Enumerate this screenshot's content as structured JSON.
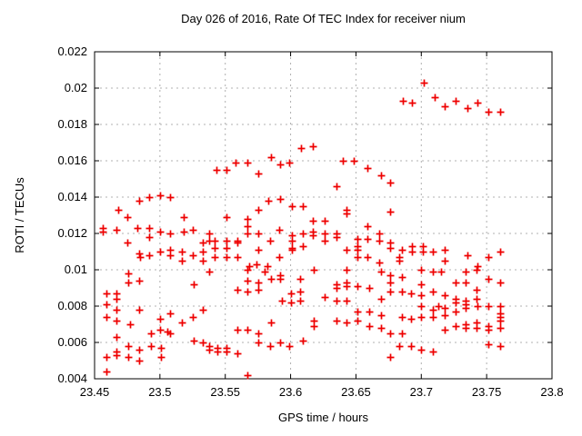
{
  "window": {
    "background": "#ffffff"
  },
  "chart_data": {
    "type": "scatter",
    "title": "Day 026 of 2016, Rate Of TEC Index for receiver nium",
    "xlabel": "GPS time / hours",
    "ylabel": "ROTI / TECUs",
    "xlim": [
      23.45,
      23.8
    ],
    "ylim": [
      0.004,
      0.022
    ],
    "grid": true,
    "legend": "none",
    "marker": "plus",
    "marker_color": "#ee0000",
    "grid_color": "#b0b0b0",
    "border_color": "#000000",
    "xticks": [
      {
        "value": 23.45,
        "label": "23.45"
      },
      {
        "value": 23.5,
        "label": "23.5"
      },
      {
        "value": 23.55,
        "label": "23.55"
      },
      {
        "value": 23.6,
        "label": "23.6"
      },
      {
        "value": 23.65,
        "label": "23.65"
      },
      {
        "value": 23.7,
        "label": "23.7"
      },
      {
        "value": 23.75,
        "label": "23.75"
      },
      {
        "value": 23.8,
        "label": "23.8"
      }
    ],
    "yticks": [
      {
        "value": 0.004,
        "label": "0.004"
      },
      {
        "value": 0.006,
        "label": "0.006"
      },
      {
        "value": 0.008,
        "label": "0.008"
      },
      {
        "value": 0.01,
        "label": "0.01"
      },
      {
        "value": 0.012,
        "label": "0.012"
      },
      {
        "value": 0.014,
        "label": "0.014"
      },
      {
        "value": 0.016,
        "label": "0.016"
      },
      {
        "value": 0.018,
        "label": "0.018"
      },
      {
        "value": 0.02,
        "label": "0.02"
      },
      {
        "value": 0.022,
        "label": "0.022"
      }
    ],
    "points": [
      [
        23.686,
        0.0193
      ],
      [
        23.693,
        0.0192
      ],
      [
        23.702,
        0.0203
      ],
      [
        23.71,
        0.0195
      ],
      [
        23.718,
        0.019
      ],
      [
        23.726,
        0.0193
      ],
      [
        23.735,
        0.0189
      ],
      [
        23.743,
        0.0192
      ],
      [
        23.751,
        0.0187
      ],
      [
        23.76,
        0.0187
      ],
      [
        23.585,
        0.0162
      ],
      [
        23.608,
        0.0167
      ],
      [
        23.617,
        0.0168
      ],
      [
        23.558,
        0.0159
      ],
      [
        23.567,
        0.0159
      ],
      [
        23.592,
        0.0158
      ],
      [
        23.599,
        0.0159
      ],
      [
        23.543,
        0.0155
      ],
      [
        23.551,
        0.0155
      ],
      [
        23.64,
        0.016
      ],
      [
        23.648,
        0.016
      ],
      [
        23.659,
        0.0156
      ],
      [
        23.669,
        0.0152
      ],
      [
        23.676,
        0.0148
      ],
      [
        23.635,
        0.0146
      ],
      [
        23.575,
        0.0153
      ],
      [
        23.468,
        0.0133
      ],
      [
        23.475,
        0.0129
      ],
      [
        23.484,
        0.0138
      ],
      [
        23.492,
        0.014
      ],
      [
        23.5,
        0.0141
      ],
      [
        23.508,
        0.014
      ],
      [
        23.583,
        0.0138
      ],
      [
        23.592,
        0.0139
      ],
      [
        23.601,
        0.0135
      ],
      [
        23.609,
        0.0135
      ],
      [
        23.575,
        0.0133
      ],
      [
        23.643,
        0.0133
      ],
      [
        23.643,
        0.0131
      ],
      [
        23.676,
        0.0132
      ],
      [
        23.518,
        0.0129
      ],
      [
        23.551,
        0.0129
      ],
      [
        23.567,
        0.0128
      ],
      [
        23.617,
        0.0127
      ],
      [
        23.626,
        0.0127
      ],
      [
        23.456,
        0.0123
      ],
      [
        23.456,
        0.0121
      ],
      [
        23.467,
        0.0122
      ],
      [
        23.483,
        0.0123
      ],
      [
        23.492,
        0.0123
      ],
      [
        23.492,
        0.0118
      ],
      [
        23.5,
        0.0121
      ],
      [
        23.508,
        0.012
      ],
      [
        23.518,
        0.0121
      ],
      [
        23.525,
        0.0122
      ],
      [
        23.538,
        0.012
      ],
      [
        23.538,
        0.0116
      ],
      [
        23.542,
        0.0116
      ],
      [
        23.542,
        0.0112
      ],
      [
        23.551,
        0.0116
      ],
      [
        23.551,
        0.0112
      ],
      [
        23.559,
        0.0116
      ],
      [
        23.559,
        0.0115
      ],
      [
        23.567,
        0.0124
      ],
      [
        23.567,
        0.012
      ],
      [
        23.575,
        0.012
      ],
      [
        23.584,
        0.0116
      ],
      [
        23.591,
        0.0122
      ],
      [
        23.601,
        0.0119
      ],
      [
        23.601,
        0.0116
      ],
      [
        23.609,
        0.0113
      ],
      [
        23.609,
        0.012
      ],
      [
        23.617,
        0.0121
      ],
      [
        23.617,
        0.0119
      ],
      [
        23.626,
        0.012
      ],
      [
        23.626,
        0.0116
      ],
      [
        23.635,
        0.012
      ],
      [
        23.635,
        0.0118
      ],
      [
        23.659,
        0.0124
      ],
      [
        23.659,
        0.0117
      ],
      [
        23.651,
        0.0117
      ],
      [
        23.668,
        0.012
      ],
      [
        23.668,
        0.0116
      ],
      [
        23.676,
        0.0115
      ],
      [
        23.676,
        0.0112
      ],
      [
        23.475,
        0.0115
      ],
      [
        23.533,
        0.0115
      ],
      [
        23.575,
        0.0111
      ],
      [
        23.601,
        0.0112
      ],
      [
        23.601,
        0.0111
      ],
      [
        23.651,
        0.0113
      ],
      [
        23.685,
        0.0111
      ],
      [
        23.693,
        0.0113
      ],
      [
        23.693,
        0.011
      ],
      [
        23.701,
        0.0113
      ],
      [
        23.701,
        0.011
      ],
      [
        23.709,
        0.011
      ],
      [
        23.643,
        0.0111
      ],
      [
        23.651,
        0.0111
      ],
      [
        23.718,
        0.0111
      ],
      [
        23.76,
        0.011
      ],
      [
        23.484,
        0.0109
      ],
      [
        23.485,
        0.0107
      ],
      [
        23.492,
        0.0108
      ],
      [
        23.5,
        0.011
      ],
      [
        23.508,
        0.0111
      ],
      [
        23.508,
        0.0108
      ],
      [
        23.517,
        0.011
      ],
      [
        23.517,
        0.0105
      ],
      [
        23.525,
        0.0108
      ],
      [
        23.533,
        0.011
      ],
      [
        23.533,
        0.0105
      ],
      [
        23.542,
        0.0107
      ],
      [
        23.551,
        0.0107
      ],
      [
        23.559,
        0.0107
      ],
      [
        23.591,
        0.0107
      ],
      [
        23.651,
        0.0107
      ],
      [
        23.659,
        0.0107
      ],
      [
        23.668,
        0.0104
      ],
      [
        23.683,
        0.0107
      ],
      [
        23.683,
        0.0105
      ],
      [
        23.718,
        0.0105
      ],
      [
        23.735,
        0.0108
      ],
      [
        23.751,
        0.0107
      ],
      [
        23.743,
        0.0102
      ],
      [
        23.574,
        0.0103
      ],
      [
        23.582,
        0.0102
      ],
      [
        23.568,
        0.0102
      ],
      [
        23.476,
        0.0098
      ],
      [
        23.538,
        0.0099
      ],
      [
        23.567,
        0.01
      ],
      [
        23.58,
        0.0099
      ],
      [
        23.592,
        0.0097
      ],
      [
        23.607,
        0.0095
      ],
      [
        23.618,
        0.01
      ],
      [
        23.643,
        0.01
      ],
      [
        23.669,
        0.0099
      ],
      [
        23.676,
        0.0097
      ],
      [
        23.685,
        0.0096
      ],
      [
        23.7,
        0.01
      ],
      [
        23.709,
        0.0099
      ],
      [
        23.715,
        0.0099
      ],
      [
        23.734,
        0.0099
      ],
      [
        23.742,
        0.01
      ],
      [
        23.751,
        0.0095
      ],
      [
        23.585,
        0.0095
      ],
      [
        23.592,
        0.0095
      ],
      [
        23.476,
        0.0093
      ],
      [
        23.484,
        0.0094
      ],
      [
        23.526,
        0.0092
      ],
      [
        23.567,
        0.0094
      ],
      [
        23.575,
        0.0093
      ],
      [
        23.635,
        0.0092
      ],
      [
        23.635,
        0.009
      ],
      [
        23.643,
        0.0093
      ],
      [
        23.643,
        0.0091
      ],
      [
        23.651,
        0.0091
      ],
      [
        23.66,
        0.009
      ],
      [
        23.676,
        0.0093
      ],
      [
        23.676,
        0.0088
      ],
      [
        23.7,
        0.0092
      ],
      [
        23.726,
        0.0093
      ],
      [
        23.734,
        0.0093
      ],
      [
        23.76,
        0.0093
      ],
      [
        23.559,
        0.0089
      ],
      [
        23.575,
        0.0089
      ],
      [
        23.567,
        0.0088
      ],
      [
        23.6,
        0.0087
      ],
      [
        23.607,
        0.0088
      ],
      [
        23.685,
        0.0088
      ],
      [
        23.692,
        0.0087
      ],
      [
        23.709,
        0.0088
      ],
      [
        23.459,
        0.0087
      ],
      [
        23.467,
        0.0087
      ],
      [
        23.7,
        0.0086
      ],
      [
        23.718,
        0.0086
      ],
      [
        23.467,
        0.0084
      ],
      [
        23.459,
        0.0081
      ],
      [
        23.6,
        0.0082
      ],
      [
        23.593,
        0.0083
      ],
      [
        23.607,
        0.0083
      ],
      [
        23.626,
        0.0085
      ],
      [
        23.635,
        0.0083
      ],
      [
        23.643,
        0.0083
      ],
      [
        23.669,
        0.0084
      ],
      [
        23.7,
        0.008
      ],
      [
        23.726,
        0.0084
      ],
      [
        23.726,
        0.0082
      ],
      [
        23.742,
        0.0089
      ],
      [
        23.742,
        0.0084
      ],
      [
        23.734,
        0.0083
      ],
      [
        23.734,
        0.0081
      ],
      [
        23.713,
        0.008
      ],
      [
        23.718,
        0.0079
      ],
      [
        23.734,
        0.0079
      ],
      [
        23.743,
        0.008
      ],
      [
        23.751,
        0.008
      ],
      [
        23.76,
        0.008
      ],
      [
        23.467,
        0.0078
      ],
      [
        23.484,
        0.0078
      ],
      [
        23.459,
        0.0074
      ],
      [
        23.467,
        0.0072
      ],
      [
        23.477,
        0.007
      ],
      [
        23.5,
        0.0073
      ],
      [
        23.508,
        0.0076
      ],
      [
        23.517,
        0.0071
      ],
      [
        23.525,
        0.0074
      ],
      [
        23.533,
        0.0078
      ],
      [
        23.651,
        0.0077
      ],
      [
        23.66,
        0.0077
      ],
      [
        23.669,
        0.0075
      ],
      [
        23.685,
        0.0074
      ],
      [
        23.692,
        0.0073
      ],
      [
        23.7,
        0.0074
      ],
      [
        23.709,
        0.0078
      ],
      [
        23.709,
        0.0074
      ],
      [
        23.635,
        0.0072
      ],
      [
        23.643,
        0.0071
      ],
      [
        23.651,
        0.0072
      ],
      [
        23.618,
        0.0072
      ],
      [
        23.585,
        0.0071
      ],
      [
        23.726,
        0.0077
      ],
      [
        23.718,
        0.0075
      ],
      [
        23.76,
        0.0076
      ],
      [
        23.76,
        0.0074
      ],
      [
        23.76,
        0.0072
      ],
      [
        23.726,
        0.0069
      ],
      [
        23.734,
        0.007
      ],
      [
        23.742,
        0.0071
      ],
      [
        23.751,
        0.0069
      ],
      [
        23.559,
        0.0067
      ],
      [
        23.567,
        0.0067
      ],
      [
        23.575,
        0.0065
      ],
      [
        23.618,
        0.0069
      ],
      [
        23.493,
        0.0065
      ],
      [
        23.506,
        0.0066
      ],
      [
        23.5,
        0.0067
      ],
      [
        23.508,
        0.0065
      ],
      [
        23.467,
        0.0063
      ],
      [
        23.66,
        0.0069
      ],
      [
        23.669,
        0.0068
      ],
      [
        23.676,
        0.0065
      ],
      [
        23.685,
        0.0065
      ],
      [
        23.734,
        0.0068
      ],
      [
        23.742,
        0.0068
      ],
      [
        23.751,
        0.0067
      ],
      [
        23.718,
        0.0067
      ],
      [
        23.76,
        0.0068
      ],
      [
        23.533,
        0.006
      ],
      [
        23.526,
        0.0061
      ],
      [
        23.575,
        0.006
      ],
      [
        23.592,
        0.006
      ],
      [
        23.584,
        0.0058
      ],
      [
        23.599,
        0.0058
      ],
      [
        23.609,
        0.0061
      ],
      [
        23.538,
        0.0058
      ],
      [
        23.538,
        0.0056
      ],
      [
        23.544,
        0.0057
      ],
      [
        23.544,
        0.0055
      ],
      [
        23.551,
        0.0057
      ],
      [
        23.551,
        0.0055
      ],
      [
        23.559,
        0.0054
      ],
      [
        23.459,
        0.0052
      ],
      [
        23.467,
        0.0055
      ],
      [
        23.467,
        0.0053
      ],
      [
        23.476,
        0.0058
      ],
      [
        23.476,
        0.0052
      ],
      [
        23.484,
        0.0056
      ],
      [
        23.484,
        0.005
      ],
      [
        23.501,
        0.0057
      ],
      [
        23.501,
        0.0052
      ],
      [
        23.493,
        0.0058
      ],
      [
        23.683,
        0.0058
      ],
      [
        23.692,
        0.0058
      ],
      [
        23.7,
        0.0056
      ],
      [
        23.709,
        0.0055
      ],
      [
        23.676,
        0.0052
      ],
      [
        23.751,
        0.0059
      ],
      [
        23.76,
        0.0058
      ],
      [
        23.459,
        0.0044
      ],
      [
        23.567,
        0.0042
      ]
    ]
  }
}
